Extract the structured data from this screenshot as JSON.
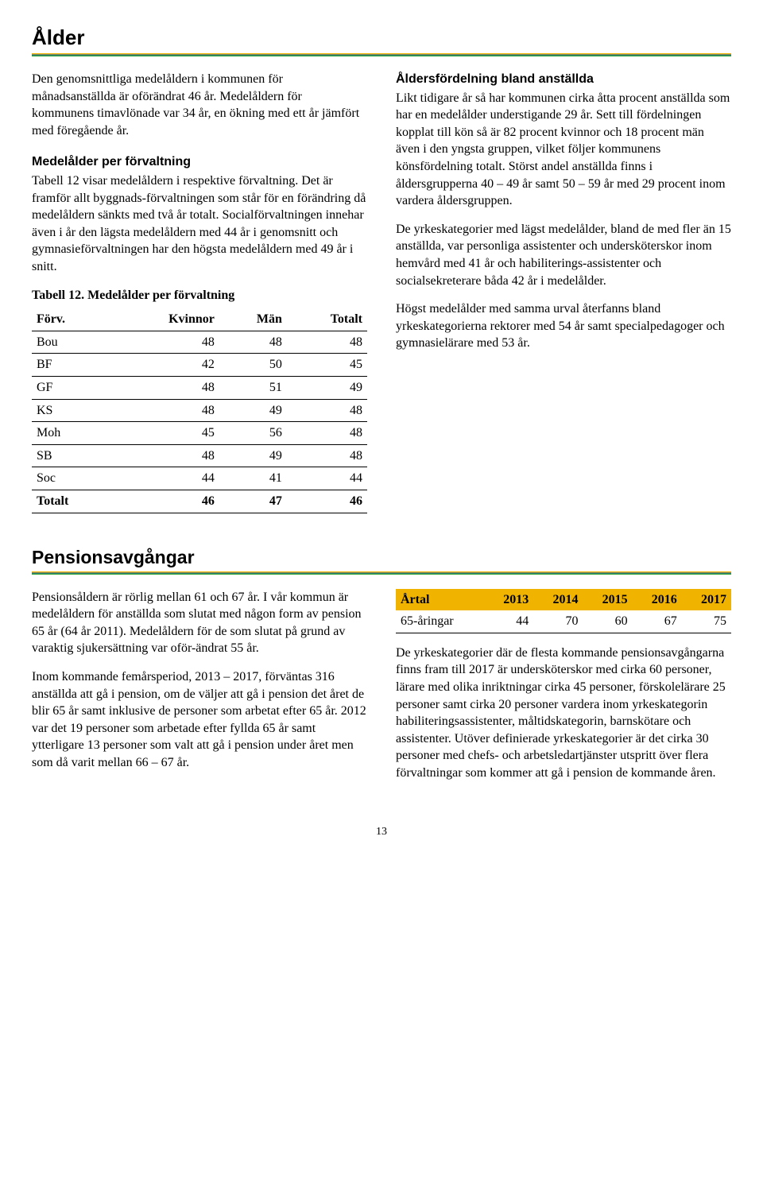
{
  "section1": {
    "heading": "Ålder",
    "left": {
      "p1": "Den genomsnittliga medelåldern i kommunen för månadsanställda är oförändrat 46 år. Medelåldern för kommunens timavlönade var 34 år, en ökning med ett år jämfört med föregående år.",
      "subhead1": "Medelålder per förvaltning",
      "p2": "Tabell 12 visar medelåldern i respektive förvaltning. Det är framför allt byggnads-förvaltningen som står för en förändring då medelåldern sänkts med två år totalt. Socialförvaltningen innehar även i år den lägsta medelåldern med 44 år i genomsnitt och gymnasieförvaltningen har den högsta medelåldern med 49 år i snitt.",
      "caption": "Tabell 12. Medelålder per förvaltning"
    },
    "right": {
      "subhead1": "Åldersfördelning bland anställda",
      "p1": "Likt tidigare år så har kommunen cirka åtta procent anställda som har en medelålder understigande 29 år. Sett till fördelningen kopplat till kön så är 82 procent kvinnor och 18 procent män även i den yngsta gruppen, vilket följer kommunens könsfördelning totalt. Störst andel anställda finns i åldersgrupperna 40 – 49 år samt 50 – 59 år med 29 procent inom vardera åldersgruppen.",
      "p2": "De yrkeskategorier med lägst medelålder, bland de med fler än 15 anställda, var personliga assistenter och undersköterskor inom hemvård med 41 år och habiliterings-assistenter och socialsekreterare båda 42 år i medelålder.",
      "p3": "Högst medelålder med samma urval återfanns bland yrkeskategorierna rektorer med 54 år samt specialpedagoger och gymnasielärare med 53 år."
    },
    "table": {
      "headers": [
        "Förv.",
        "Kvinnor",
        "Män",
        "Totalt"
      ],
      "rows": [
        [
          "Bou",
          "48",
          "48",
          "48"
        ],
        [
          "BF",
          "42",
          "50",
          "45"
        ],
        [
          "GF",
          "48",
          "51",
          "49"
        ],
        [
          "KS",
          "48",
          "49",
          "48"
        ],
        [
          "Moh",
          "45",
          "56",
          "48"
        ],
        [
          "SB",
          "48",
          "49",
          "48"
        ],
        [
          "Soc",
          "44",
          "41",
          "44"
        ]
      ],
      "total": [
        "Totalt",
        "46",
        "47",
        "46"
      ]
    }
  },
  "section2": {
    "heading": "Pensionsavgångar",
    "left": {
      "p1": "Pensionsåldern är rörlig mellan 61 och 67 år. I vår kommun är medelåldern för anställda som slutat med någon form av pension 65 år (64 år 2011). Medelåldern för de som slutat på grund av varaktig sjukersättning var oför-ändrat 55 år.",
      "p2": "Inom kommande femårsperiod, 2013 – 2017, förväntas 316 anställda att gå i pension, om de väljer att gå i pension det året de blir 65 år samt inklusive de personer som arbetat efter 65 år. 2012 var det 19 personer som arbetade efter fyllda 65 år samt ytterligare 13 personer som valt att gå i pension under året men som då varit mellan 66 – 67 år."
    },
    "right": {
      "p1": "De yrkeskategorier där de flesta kommande pensionsavgångarna finns fram till 2017 är undersköterskor med cirka 60 personer, lärare med olika inriktningar cirka 45 personer, förskolelärare 25 personer samt cirka 20 personer vardera inom yrkeskategorin habiliteringsassistenter, måltidskategorin, barnskötare och assistenter. Utöver definierade yrkeskategorier är det cirka 30 personer med chefs- och arbetsledartjänster utspritt över flera förvaltningar som kommer att gå i pension de kommande åren."
    },
    "table": {
      "headers": [
        "Årtal",
        "2013",
        "2014",
        "2015",
        "2016",
        "2017"
      ],
      "row": [
        "65-åringar",
        "44",
        "70",
        "60",
        "67",
        "75"
      ]
    }
  },
  "pagenum": "13"
}
